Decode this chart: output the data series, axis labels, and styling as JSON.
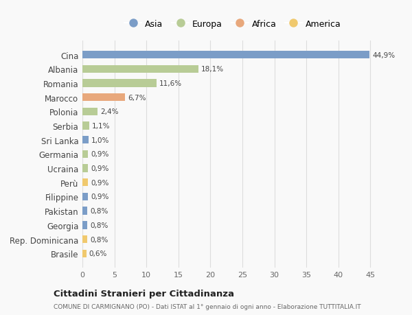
{
  "categories": [
    "Cina",
    "Albania",
    "Romania",
    "Marocco",
    "Polonia",
    "Serbia",
    "Sri Lanka",
    "Germania",
    "Ucraina",
    "Perù",
    "Filippine",
    "Pakistan",
    "Georgia",
    "Rep. Dominicana",
    "Brasile"
  ],
  "values": [
    44.9,
    18.1,
    11.6,
    6.7,
    2.4,
    1.1,
    1.0,
    0.9,
    0.9,
    0.9,
    0.9,
    0.8,
    0.8,
    0.8,
    0.6
  ],
  "continents": [
    "Asia",
    "Europa",
    "Europa",
    "Africa",
    "Europa",
    "Europa",
    "Asia",
    "Europa",
    "Europa",
    "America",
    "Asia",
    "Asia",
    "Asia",
    "America",
    "America"
  ],
  "continent_colors": {
    "Asia": "#7b9dc7",
    "Europa": "#b8cc96",
    "Africa": "#e8a87c",
    "America": "#f0c96e"
  },
  "labels": [
    "44,9%",
    "18,1%",
    "11,6%",
    "6,7%",
    "2,4%",
    "1,1%",
    "1,0%",
    "0,9%",
    "0,9%",
    "0,9%",
    "0,9%",
    "0,8%",
    "0,8%",
    "0,8%",
    "0,6%"
  ],
  "legend_order": [
    "Asia",
    "Europa",
    "Africa",
    "America"
  ],
  "xlim": [
    0,
    47
  ],
  "xticks": [
    0,
    5,
    10,
    15,
    20,
    25,
    30,
    35,
    40,
    45
  ],
  "title": "Cittadini Stranieri per Cittadinanza",
  "subtitle": "COMUNE DI CARMIGNANO (PO) - Dati ISTAT al 1° gennaio di ogni anno - Elaborazione TUTTITALIA.IT",
  "background_color": "#f9f9f9",
  "grid_color": "#dddddd"
}
